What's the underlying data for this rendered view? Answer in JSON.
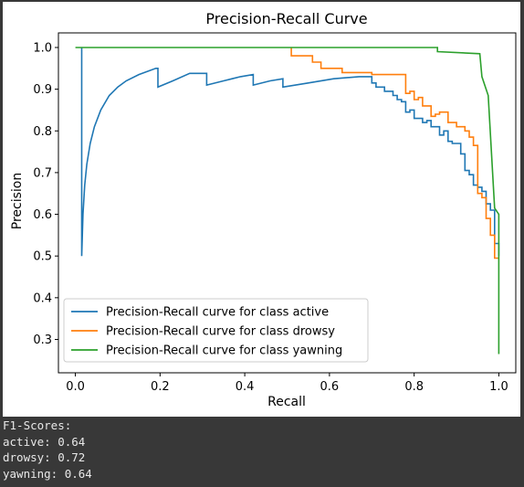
{
  "chart_data": {
    "type": "line",
    "title": "Precision-Recall Curve",
    "xlabel": "Recall",
    "ylabel": "Precision",
    "xlim": [
      -0.04,
      1.04
    ],
    "ylim": [
      0.22,
      1.035
    ],
    "xticks": [
      0.0,
      0.2,
      0.4,
      0.6,
      0.8,
      1.0
    ],
    "xtick_labels": [
      "0.0",
      "0.2",
      "0.4",
      "0.6",
      "0.8",
      "1.0"
    ],
    "yticks": [
      0.3,
      0.4,
      0.5,
      0.6,
      0.7,
      0.8,
      0.9,
      1.0
    ],
    "ytick_labels": [
      "0.3",
      "0.4",
      "0.5",
      "0.6",
      "0.7",
      "0.8",
      "0.9",
      "1.0"
    ],
    "grid": false,
    "legend_position": "lower-left",
    "series": [
      {
        "name": "Precision-Recall curve for class active",
        "color": "#1f77b4",
        "x": [
          0.015,
          0.015,
          0.015,
          0.018,
          0.022,
          0.027,
          0.035,
          0.045,
          0.06,
          0.08,
          0.1,
          0.12,
          0.15,
          0.19,
          0.195,
          0.195,
          0.23,
          0.27,
          0.31,
          0.31,
          0.35,
          0.39,
          0.42,
          0.42,
          0.46,
          0.49,
          0.49,
          0.55,
          0.61,
          0.67,
          0.7,
          0.7,
          0.71,
          0.71,
          0.73,
          0.73,
          0.75,
          0.75,
          0.76,
          0.76,
          0.77,
          0.77,
          0.78,
          0.78,
          0.79,
          0.79,
          0.8,
          0.8,
          0.82,
          0.82,
          0.83,
          0.83,
          0.84,
          0.84,
          0.86,
          0.86,
          0.87,
          0.87,
          0.88,
          0.88,
          0.89,
          0.89,
          0.9,
          0.9,
          0.91,
          0.91,
          0.92,
          0.92,
          0.93,
          0.93,
          0.94,
          0.94,
          0.95,
          0.95,
          0.96,
          0.96,
          0.97,
          0.97,
          0.98,
          0.98,
          0.99,
          0.99,
          1.0,
          1.0
        ],
        "y": [
          1.0,
          0.5,
          0.5,
          0.6,
          0.67,
          0.72,
          0.77,
          0.81,
          0.85,
          0.885,
          0.905,
          0.92,
          0.935,
          0.95,
          0.95,
          0.905,
          0.92,
          0.938,
          0.938,
          0.91,
          0.92,
          0.93,
          0.935,
          0.91,
          0.92,
          0.925,
          0.905,
          0.915,
          0.925,
          0.93,
          0.93,
          0.915,
          0.915,
          0.905,
          0.905,
          0.895,
          0.895,
          0.885,
          0.885,
          0.875,
          0.875,
          0.87,
          0.87,
          0.845,
          0.845,
          0.85,
          0.85,
          0.83,
          0.83,
          0.82,
          0.82,
          0.825,
          0.825,
          0.81,
          0.81,
          0.79,
          0.79,
          0.8,
          0.8,
          0.775,
          0.775,
          0.77,
          0.77,
          0.77,
          0.77,
          0.745,
          0.745,
          0.705,
          0.705,
          0.695,
          0.695,
          0.67,
          0.67,
          0.665,
          0.665,
          0.655,
          0.655,
          0.625,
          0.625,
          0.61,
          0.61,
          0.53,
          0.53,
          0.5
        ]
      },
      {
        "name": "Precision-Recall curve for class drowsy",
        "color": "#ff7f0e",
        "x": [
          0.51,
          0.51,
          0.56,
          0.56,
          0.58,
          0.58,
          0.63,
          0.63,
          0.7,
          0.7,
          0.78,
          0.78,
          0.79,
          0.79,
          0.8,
          0.8,
          0.81,
          0.81,
          0.82,
          0.82,
          0.84,
          0.84,
          0.85,
          0.85,
          0.86,
          0.86,
          0.88,
          0.88,
          0.9,
          0.9,
          0.92,
          0.92,
          0.93,
          0.93,
          0.94,
          0.94,
          0.95,
          0.95,
          0.96,
          0.96,
          0.97,
          0.97,
          0.98,
          0.98,
          0.99,
          0.99,
          1.0
        ],
        "y": [
          1.0,
          0.98,
          0.98,
          0.965,
          0.965,
          0.95,
          0.95,
          0.94,
          0.94,
          0.935,
          0.935,
          0.89,
          0.89,
          0.895,
          0.895,
          0.875,
          0.875,
          0.88,
          0.88,
          0.86,
          0.86,
          0.835,
          0.835,
          0.84,
          0.84,
          0.845,
          0.845,
          0.82,
          0.82,
          0.81,
          0.81,
          0.8,
          0.8,
          0.785,
          0.785,
          0.765,
          0.765,
          0.65,
          0.65,
          0.64,
          0.64,
          0.59,
          0.59,
          0.55,
          0.55,
          0.495,
          0.495
        ]
      },
      {
        "name": "Precision-Recall curve for class yawning",
        "color": "#2ca02c",
        "x": [
          0.0,
          0.855,
          0.855,
          0.955,
          0.955,
          0.96,
          0.96,
          0.975,
          0.975,
          0.99,
          0.99,
          1.0,
          1.0
        ],
        "y": [
          1.0,
          1.0,
          0.99,
          0.985,
          0.985,
          0.93,
          0.93,
          0.885,
          0.885,
          0.615,
          0.615,
          0.6,
          0.265
        ]
      }
    ]
  },
  "output": {
    "lines": [
      "F1-Scores:",
      "active: 0.64",
      "drowsy: 0.72",
      "yawning: 0.64"
    ]
  }
}
